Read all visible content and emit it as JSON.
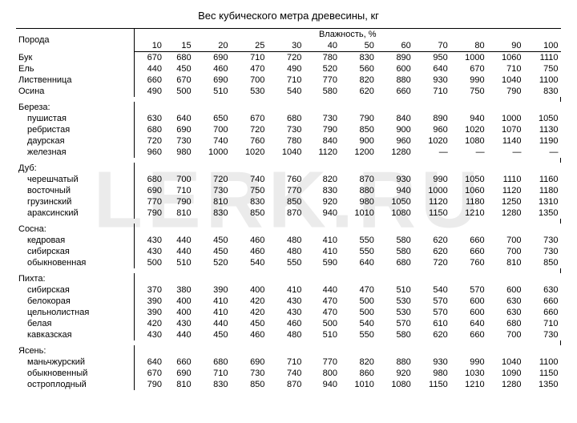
{
  "title": "Вес кубического метра древесины, кг",
  "watermark": "LERK.RU",
  "header": {
    "species_label": "Порода",
    "humidity_label": "Влажность, %",
    "humidity_cols": [
      "10",
      "15",
      "20",
      "25",
      "30",
      "40",
      "50",
      "60",
      "70",
      "80",
      "90",
      "100"
    ]
  },
  "groups": [
    {
      "rows": [
        {
          "name": "Бук",
          "v": [
            "670",
            "680",
            "690",
            "710",
            "720",
            "780",
            "830",
            "890",
            "950",
            "1000",
            "1060",
            "1110"
          ]
        },
        {
          "name": "Ель",
          "v": [
            "440",
            "450",
            "460",
            "470",
            "490",
            "520",
            "560",
            "600",
            "640",
            "670",
            "710",
            "750"
          ]
        },
        {
          "name": "Лиственница",
          "v": [
            "660",
            "670",
            "690",
            "700",
            "710",
            "770",
            "820",
            "880",
            "930",
            "990",
            "1040",
            "1100"
          ]
        },
        {
          "name": "Осина",
          "v": [
            "490",
            "500",
            "510",
            "530",
            "540",
            "580",
            "620",
            "660",
            "710",
            "750",
            "790",
            "830"
          ]
        }
      ]
    },
    {
      "heading": "Береза:",
      "rows": [
        {
          "name": "пушистая",
          "indent": true,
          "v": [
            "630",
            "640",
            "650",
            "670",
            "680",
            "730",
            "790",
            "840",
            "890",
            "940",
            "1000",
            "1050"
          ]
        },
        {
          "name": "ребристая",
          "indent": true,
          "v": [
            "680",
            "690",
            "700",
            "720",
            "730",
            "790",
            "850",
            "900",
            "960",
            "1020",
            "1070",
            "1130"
          ]
        },
        {
          "name": "даурская",
          "indent": true,
          "v": [
            "720",
            "730",
            "740",
            "760",
            "780",
            "840",
            "900",
            "960",
            "1020",
            "1080",
            "1140",
            "1190"
          ]
        },
        {
          "name": "железная",
          "indent": true,
          "v": [
            "960",
            "980",
            "1000",
            "1020",
            "1040",
            "1120",
            "1200",
            "1280",
            "—",
            "—",
            "—",
            "—"
          ]
        }
      ]
    },
    {
      "heading": "Дуб:",
      "rows": [
        {
          "name": "черешчатый",
          "indent": true,
          "v": [
            "680",
            "700",
            "720",
            "740",
            "760",
            "820",
            "870",
            "930",
            "990",
            "1050",
            "1110",
            "1160"
          ]
        },
        {
          "name": "восточный",
          "indent": true,
          "v": [
            "690",
            "710",
            "730",
            "750",
            "770",
            "830",
            "880",
            "940",
            "1000",
            "1060",
            "1120",
            "1180"
          ]
        },
        {
          "name": "грузинский",
          "indent": true,
          "v": [
            "770",
            "790",
            "810",
            "830",
            "850",
            "920",
            "980",
            "1050",
            "1120",
            "1180",
            "1250",
            "1310"
          ]
        },
        {
          "name": "араксинский",
          "indent": true,
          "v": [
            "790",
            "810",
            "830",
            "850",
            "870",
            "940",
            "1010",
            "1080",
            "1150",
            "1210",
            "1280",
            "1350"
          ]
        }
      ]
    },
    {
      "heading": "Сосна:",
      "rows": [
        {
          "name": "кедровая",
          "indent": true,
          "v": [
            "430",
            "440",
            "450",
            "460",
            "480",
            "410",
            "550",
            "580",
            "620",
            "660",
            "700",
            "730"
          ]
        },
        {
          "name": "сибирская",
          "indent": true,
          "v": [
            "430",
            "440",
            "450",
            "460",
            "480",
            "410",
            "550",
            "580",
            "620",
            "660",
            "700",
            "730"
          ]
        },
        {
          "name": "обыкновенная",
          "indent": true,
          "v": [
            "500",
            "510",
            "520",
            "540",
            "550",
            "590",
            "640",
            "680",
            "720",
            "760",
            "810",
            "850"
          ]
        }
      ]
    },
    {
      "heading": "Пихта:",
      "rows": [
        {
          "name": "сибирская",
          "indent": true,
          "v": [
            "370",
            "380",
            "390",
            "400",
            "410",
            "440",
            "470",
            "510",
            "540",
            "570",
            "600",
            "630"
          ]
        },
        {
          "name": "белокорая",
          "indent": true,
          "v": [
            "390",
            "400",
            "410",
            "420",
            "430",
            "470",
            "500",
            "530",
            "570",
            "600",
            "630",
            "660"
          ]
        },
        {
          "name": "цельнолистная",
          "indent": true,
          "v": [
            "390",
            "400",
            "410",
            "420",
            "430",
            "470",
            "500",
            "530",
            "570",
            "600",
            "630",
            "660"
          ]
        },
        {
          "name": "белая",
          "indent": true,
          "v": [
            "420",
            "430",
            "440",
            "450",
            "460",
            "500",
            "540",
            "570",
            "610",
            "640",
            "680",
            "710"
          ]
        },
        {
          "name": "кавказская",
          "indent": true,
          "v": [
            "430",
            "440",
            "450",
            "460",
            "480",
            "510",
            "550",
            "580",
            "620",
            "660",
            "700",
            "730"
          ]
        }
      ]
    },
    {
      "heading": "Ясень:",
      "rows": [
        {
          "name": "маньчжурский",
          "indent": true,
          "v": [
            "640",
            "660",
            "680",
            "690",
            "710",
            "770",
            "820",
            "880",
            "930",
            "990",
            "1040",
            "1100"
          ]
        },
        {
          "name": "обыкновенный",
          "indent": true,
          "v": [
            "670",
            "690",
            "710",
            "730",
            "740",
            "800",
            "860",
            "920",
            "980",
            "1030",
            "1090",
            "1150"
          ]
        },
        {
          "name": "остроплодный",
          "indent": true,
          "v": [
            "790",
            "810",
            "830",
            "850",
            "870",
            "940",
            "1010",
            "1080",
            "1150",
            "1210",
            "1280",
            "1350"
          ]
        }
      ]
    }
  ]
}
